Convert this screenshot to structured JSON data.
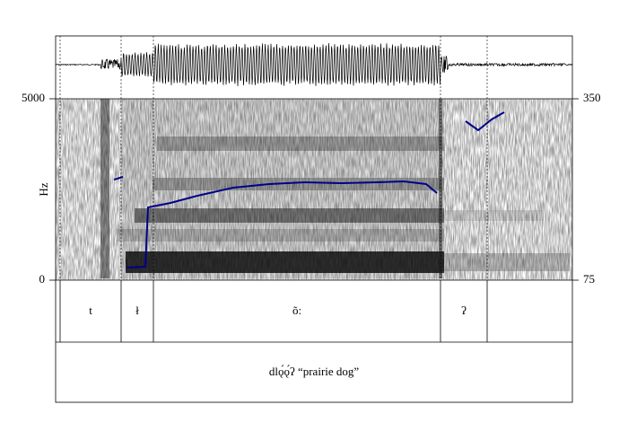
{
  "axes": {
    "left": {
      "label": "Hz",
      "ylim": [
        0,
        5000
      ],
      "yticks": [
        0,
        5000
      ]
    },
    "right": {
      "ylim": [
        75,
        350
      ],
      "yticks": [
        75,
        350
      ]
    }
  },
  "tiers": [
    {
      "intervals": [
        "t",
        "ł",
        "õ:",
        "ʔ"
      ]
    },
    {
      "intervals": [
        "dlǫ́ǫ́ʔ “prairie dog”"
      ]
    }
  ]
}
